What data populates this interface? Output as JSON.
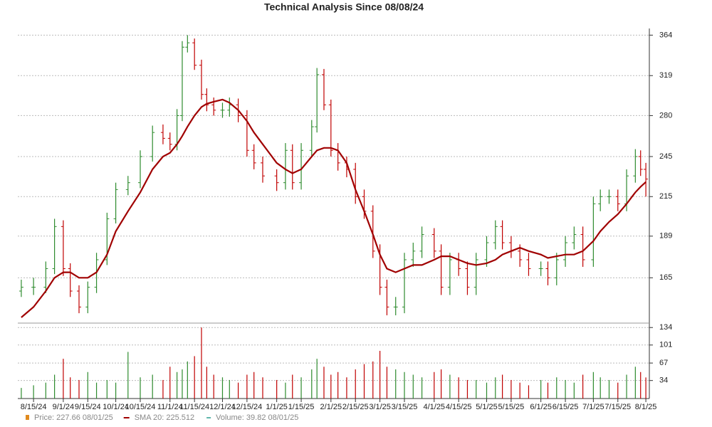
{
  "chart_data": {
    "type": "ohlc",
    "title": "Technical Analysis Since 08/08/24",
    "log_scale": true,
    "grid": true,
    "up_color": "#2e8b2e",
    "down_color": "#c00000",
    "sma_color": "#a00000",
    "x": [
      0,
      7,
      14,
      19,
      24,
      28,
      33,
      38,
      43,
      49,
      54,
      61,
      68,
      75,
      81,
      85,
      89,
      92,
      95,
      99,
      103,
      106,
      110,
      115,
      119,
      124,
      129,
      133,
      138,
      146,
      151,
      155,
      160,
      166,
      169,
      173,
      177,
      181,
      186,
      191,
      196,
      201,
      205,
      209,
      214,
      219,
      224,
      229,
      236,
      240,
      245,
      250,
      255,
      260,
      266,
      271,
      275,
      280,
      285,
      290,
      297,
      301,
      306,
      311,
      316,
      321,
      327,
      331,
      336,
      341,
      346,
      351,
      354,
      357
    ],
    "open": [
      158,
      160,
      160,
      170,
      195,
      170,
      158,
      150,
      160,
      175,
      200,
      220,
      225,
      245,
      265,
      260,
      255,
      280,
      350,
      355,
      330,
      300,
      290,
      285,
      285,
      290,
      280,
      250,
      240,
      230,
      225,
      250,
      225,
      250,
      270,
      320,
      290,
      250,
      240,
      235,
      215,
      205,
      180,
      160,
      150,
      150,
      175,
      180,
      190,
      180,
      160,
      175,
      170,
      160,
      175,
      185,
      195,
      185,
      180,
      175,
      170,
      170,
      165,
      175,
      185,
      190,
      175,
      210,
      215,
      215,
      210,
      230,
      245,
      235
    ],
    "high": [
      164,
      165,
      174,
      200,
      199,
      173,
      161,
      163,
      179,
      204,
      225,
      230,
      250,
      271,
      272,
      265,
      286,
      357,
      364,
      360,
      336,
      306,
      297,
      292,
      297,
      296,
      285,
      255,
      245,
      235,
      256,
      255,
      256,
      276,
      327,
      326,
      295,
      256,
      245,
      240,
      220,
      209,
      184,
      164,
      155,
      179,
      185,
      195,
      194,
      184,
      179,
      179,
      174,
      179,
      189,
      199,
      199,
      189,
      184,
      179,
      174,
      174,
      179,
      189,
      195,
      195,
      215,
      220,
      220,
      220,
      235,
      251,
      250,
      240
    ],
    "low": [
      155,
      156,
      157,
      167,
      166,
      155,
      147,
      147,
      157,
      172,
      197,
      216,
      221,
      241,
      255,
      250,
      250,
      275,
      344,
      325,
      295,
      284,
      280,
      278,
      279,
      274,
      245,
      235,
      225,
      219,
      220,
      220,
      220,
      245,
      265,
      285,
      245,
      234,
      229,
      210,
      200,
      176,
      156,
      146,
      146,
      147,
      171,
      176,
      176,
      156,
      156,
      166,
      156,
      156,
      171,
      181,
      181,
      176,
      171,
      166,
      166,
      161,
      161,
      171,
      181,
      171,
      171,
      205,
      210,
      205,
      205,
      225,
      230,
      215
    ],
    "close": [
      160,
      160,
      170,
      195,
      170,
      158,
      150,
      160,
      175,
      200,
      220,
      225,
      245,
      265,
      260,
      255,
      280,
      350,
      355,
      330,
      300,
      290,
      285,
      285,
      290,
      280,
      250,
      240,
      230,
      225,
      250,
      225,
      250,
      270,
      320,
      290,
      250,
      240,
      235,
      215,
      205,
      180,
      160,
      150,
      150,
      175,
      180,
      190,
      180,
      160,
      175,
      170,
      160,
      175,
      185,
      195,
      185,
      180,
      175,
      170,
      170,
      165,
      175,
      185,
      190,
      175,
      210,
      215,
      215,
      210,
      230,
      245,
      235,
      227.66
    ],
    "sma": [
      145,
      150,
      158,
      165,
      168,
      168,
      165,
      165,
      168,
      178,
      192,
      205,
      218,
      235,
      245,
      248,
      255,
      262,
      270,
      280,
      288,
      291,
      293,
      295,
      292,
      285,
      275,
      265,
      255,
      240,
      235,
      232,
      235,
      245,
      250,
      252,
      252,
      250,
      240,
      220,
      205,
      190,
      178,
      170,
      168,
      170,
      172,
      172,
      175,
      177,
      177,
      175,
      173,
      172,
      173,
      175,
      178,
      180,
      182,
      180,
      178,
      176,
      177,
      178,
      178,
      180,
      186,
      192,
      198,
      203,
      210,
      218,
      222,
      225.512
    ],
    "volume": [
      20,
      25,
      30,
      45,
      75,
      40,
      35,
      50,
      30,
      35,
      30,
      88,
      40,
      45,
      35,
      60,
      50,
      55,
      70,
      80,
      134,
      60,
      45,
      40,
      35,
      30,
      45,
      50,
      40,
      35,
      30,
      45,
      40,
      55,
      75,
      60,
      45,
      50,
      40,
      55,
      65,
      70,
      90,
      60,
      55,
      50,
      45,
      40,
      50,
      55,
      45,
      40,
      35,
      35,
      30,
      40,
      45,
      35,
      30,
      25,
      35,
      30,
      40,
      35,
      30,
      45,
      50,
      40,
      35,
      30,
      45,
      60,
      50,
      39.82
    ],
    "xlim": [
      -2,
      359
    ],
    "xticks": [
      {
        "value": 7,
        "label": "8/15/24"
      },
      {
        "value": 24,
        "label": "9/1/24"
      },
      {
        "value": 38,
        "label": "9/15/24"
      },
      {
        "value": 54,
        "label": "10/1/24"
      },
      {
        "value": 68,
        "label": "10/15/24"
      },
      {
        "value": 85,
        "label": "11/1/24"
      },
      {
        "value": 99,
        "label": "11/15/24"
      },
      {
        "value": 115,
        "label": "12/1/24"
      },
      {
        "value": 129,
        "label": "12/15/24"
      },
      {
        "value": 146,
        "label": "1/1/25"
      },
      {
        "value": 160,
        "label": "1/15/25"
      },
      {
        "value": 177,
        "label": "2/1/25"
      },
      {
        "value": 191,
        "label": "2/15/25"
      },
      {
        "value": 205,
        "label": "3/1/25"
      },
      {
        "value": 219,
        "label": "3/15/25"
      },
      {
        "value": 236,
        "label": "4/1/25"
      },
      {
        "value": 250,
        "label": "4/15/25"
      },
      {
        "value": 266,
        "label": "5/1/25"
      },
      {
        "value": 280,
        "label": "5/15/25"
      },
      {
        "value": 297,
        "label": "6/1/25"
      },
      {
        "value": 311,
        "label": "6/15/25"
      },
      {
        "value": 327,
        "label": "7/1/25"
      },
      {
        "value": 341,
        "label": "7/15/25"
      },
      {
        "value": 357,
        "label": "8/1/25"
      }
    ],
    "ylim": [
      143,
      372
    ],
    "yticks": [
      165,
      189,
      215,
      245,
      280,
      319,
      364
    ],
    "volume_ylim": [
      0,
      137
    ],
    "volume_yticks": [
      34,
      67,
      101,
      134
    ],
    "legend": [
      {
        "label": "Price: 227.66  08/01/25",
        "color": "#e08a1e"
      },
      {
        "label": "SMA 20: 225.512",
        "color": "#a00000"
      },
      {
        "label": "Volume: 39.82  08/01/25",
        "color": "#2a9d8f"
      }
    ]
  }
}
